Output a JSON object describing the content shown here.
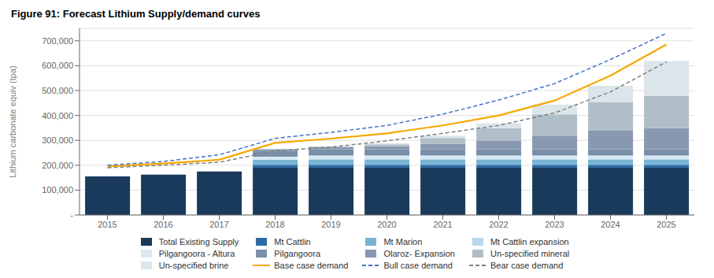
{
  "chart_data": {
    "type": "bar",
    "title": "Figure 91: Forecast Lithium Supply/demand curves",
    "y_label": "Lithium carbonate equiv (tpa)",
    "categories": [
      "2015",
      "2016",
      "2017",
      "2018",
      "2019",
      "2020",
      "2021",
      "2022",
      "2023",
      "2024",
      "2025"
    ],
    "stacked": true,
    "grid": true,
    "legend": "bottom",
    "ylim": [
      0,
      750000
    ],
    "yticks": [
      {
        "value": 0,
        "label": "-"
      },
      {
        "value": 100000,
        "label": "100,000"
      },
      {
        "value": 200000,
        "label": "200,000"
      },
      {
        "value": 300000,
        "label": "300,000"
      },
      {
        "value": 400000,
        "label": "400,000"
      },
      {
        "value": 500000,
        "label": "500,000"
      },
      {
        "value": 600000,
        "label": "600,000"
      },
      {
        "value": 700000,
        "label": "700,000"
      }
    ],
    "series": [
      {
        "name": "Total Existing Supply",
        "type": "bar",
        "color": "#1a3a5c",
        "values": [
          155000,
          162000,
          175000,
          190000,
          190000,
          190000,
          190000,
          190000,
          190000,
          190000,
          190000
        ]
      },
      {
        "name": "Mt Cattlin",
        "type": "bar",
        "color": "#2e6da4",
        "values": [
          0,
          0,
          0,
          12000,
          12000,
          12000,
          12000,
          12000,
          12000,
          12000,
          12000
        ]
      },
      {
        "name": "Mt Marion",
        "type": "bar",
        "color": "#7ab3d4",
        "values": [
          0,
          0,
          0,
          20000,
          20000,
          20000,
          20000,
          20000,
          20000,
          20000,
          20000
        ]
      },
      {
        "name": "Mt Cattlin expansion",
        "type": "bar",
        "color": "#b8d9ed",
        "values": [
          0,
          0,
          0,
          0,
          5000,
          5000,
          5000,
          5000,
          5000,
          5000,
          5000
        ]
      },
      {
        "name": "Pilgangoora - Altura",
        "type": "bar",
        "color": "#d9eaf5",
        "values": [
          0,
          0,
          0,
          12000,
          12000,
          12000,
          12000,
          12000,
          12000,
          12000,
          12000
        ]
      },
      {
        "name": "Pilgangoora",
        "type": "bar",
        "color": "#7a8fa8",
        "values": [
          0,
          0,
          0,
          25000,
          25000,
          25000,
          25000,
          25000,
          25000,
          25000,
          25000
        ]
      },
      {
        "name": "Olaroz- Expansion",
        "type": "bar",
        "color": "#8898b0",
        "values": [
          0,
          0,
          0,
          5000,
          10000,
          12000,
          22000,
          35000,
          55000,
          75000,
          85000
        ]
      },
      {
        "name": "Un-specified mineral",
        "type": "bar",
        "color": "#b0bec8",
        "values": [
          0,
          0,
          0,
          0,
          0,
          8000,
          23000,
          50000,
          85000,
          115000,
          130000
        ]
      },
      {
        "name": "Un-specified brine",
        "type": "bar",
        "color": "#dce5ea",
        "values": [
          0,
          0,
          0,
          0,
          0,
          5000,
          10000,
          20000,
          40000,
          65000,
          140000
        ]
      },
      {
        "name": "Base case demand",
        "type": "line",
        "line_style": "solid",
        "color": "#f5a800",
        "values": [
          195000,
          207000,
          222000,
          290000,
          307000,
          328000,
          360000,
          400000,
          460000,
          560000,
          685000
        ]
      },
      {
        "name": "Bull case demand",
        "type": "line",
        "line_style": "dashed",
        "color": "#4472c4",
        "values": [
          200000,
          215000,
          242000,
          308000,
          332000,
          360000,
          405000,
          462000,
          528000,
          625000,
          730000
        ]
      },
      {
        "name": "Bear case demand",
        "type": "line",
        "line_style": "dashed",
        "color": "#808080",
        "values": [
          190000,
          200000,
          212000,
          258000,
          273000,
          298000,
          328000,
          360000,
          410000,
          495000,
          615000
        ]
      }
    ]
  }
}
